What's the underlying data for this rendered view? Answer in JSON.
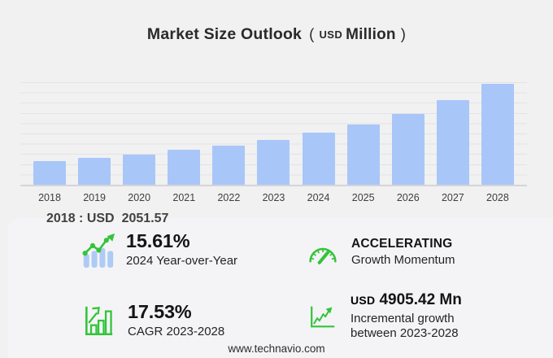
{
  "title": {
    "main": "Market Size Outlook",
    "paren_open": "(",
    "unit_currency": "USD",
    "unit": "Million",
    "paren_close": ")"
  },
  "chart_data": {
    "type": "bar",
    "title": "Market Size Outlook (USD Million)",
    "xlabel": "",
    "ylabel": "USD Million",
    "categories": [
      "2018",
      "2019",
      "2020",
      "2021",
      "2022",
      "2023",
      "2024",
      "2025",
      "2026",
      "2027",
      "2028"
    ],
    "values": [
      2051.57,
      2340,
      2670,
      3040,
      3460,
      3948,
      4564,
      5320,
      6250,
      7400,
      8853
    ],
    "ylim": [
      0,
      9000
    ],
    "grid": true,
    "legend": false,
    "bar_color": "#a9c6f8",
    "callout": {
      "label": "2018 : USD",
      "value": "2051.57"
    }
  },
  "stats": [
    {
      "icon": "bar-line-growth-icon",
      "value": "15.61%",
      "label": "2024 Year-over-Year"
    },
    {
      "icon": "speedometer-icon",
      "value": "ACCELERATING",
      "label": "Growth Momentum"
    },
    {
      "icon": "bar-chart-arrow-icon",
      "value": "17.53%",
      "label": "CAGR 2023-2028"
    },
    {
      "icon": "trend-line-arrow-icon",
      "currency": "USD",
      "value": "4905.42 Mn",
      "label": "Incremental growth",
      "label2": "between 2023-2028"
    }
  ],
  "footer": {
    "url": "www.technavio.com"
  },
  "colors": {
    "page_bg": "#f1f1f2",
    "panel_bg": "#f4f4f6",
    "bar_blue": "#a9c6f8",
    "icon_bar_blue": "#aecbf4",
    "accent_green": "#33c43a",
    "grid_line": "#e3e3e6",
    "axis_line": "#d5d5d9",
    "title_text": "#2a2a2a"
  }
}
